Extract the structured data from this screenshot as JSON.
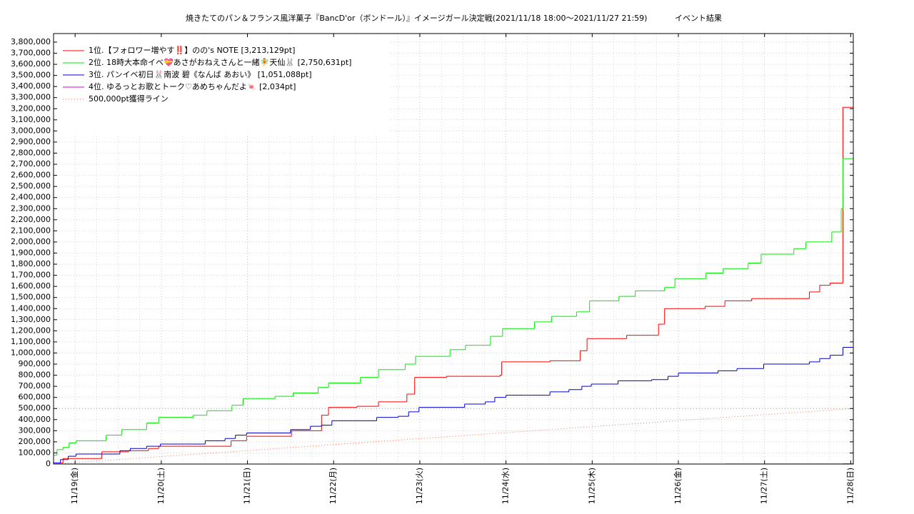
{
  "chart_data": {
    "type": "line",
    "step": true,
    "title": "焼きたてのパン＆フランス風洋菓子『BancD'or（ボンドール）』イメージガール決定戦(2021/11/18 18:00～2021/11/27 21:59)",
    "subtitle": "イベント結果",
    "grid": true,
    "legend": "upper-left",
    "xlim": [
      18.75,
      28.03
    ],
    "xticks": [
      {
        "value": 19,
        "label": "11/19(金)"
      },
      {
        "value": 20,
        "label": "11/20(土)"
      },
      {
        "value": 21,
        "label": "11/21(日)"
      },
      {
        "value": 22,
        "label": "11/22(月)"
      },
      {
        "value": 23,
        "label": "11/23(火)"
      },
      {
        "value": 24,
        "label": "11/24(水)"
      },
      {
        "value": 25,
        "label": "11/25(木)"
      },
      {
        "value": 26,
        "label": "11/26(金)"
      },
      {
        "value": 27,
        "label": "11/27(土)"
      },
      {
        "value": 28,
        "label": "11/28(日)"
      }
    ],
    "ylim": [
      0,
      3877000
    ],
    "yticks": [
      0,
      {
        "value": 100000,
        "label": "100,000"
      },
      {
        "value": 200000,
        "label": "200,000"
      },
      {
        "value": 300000,
        "label": "300,000"
      },
      {
        "value": 400000,
        "label": "400,000"
      },
      {
        "value": 500000,
        "label": "500,000"
      },
      {
        "value": 600000,
        "label": "600,000"
      },
      {
        "value": 700000,
        "label": "700,000"
      },
      {
        "value": 800000,
        "label": "800,000"
      },
      {
        "value": 900000,
        "label": "900,000"
      },
      {
        "value": 1000000,
        "label": "1,000,000"
      },
      {
        "value": 1100000,
        "label": "1,100,000"
      },
      {
        "value": 1200000,
        "label": "1,200,000"
      },
      {
        "value": 1300000,
        "label": "1,300,000"
      },
      {
        "value": 1400000,
        "label": "1,400,000"
      },
      {
        "value": 1500000,
        "label": "1,500,000"
      },
      {
        "value": 1600000,
        "label": "1,600,000"
      },
      {
        "value": 1700000,
        "label": "1,700,000"
      },
      {
        "value": 1800000,
        "label": "1,800,000"
      },
      {
        "value": 1900000,
        "label": "1,900,000"
      },
      {
        "value": 2000000,
        "label": "2,000,000"
      },
      {
        "value": 2100000,
        "label": "2,100,000"
      },
      {
        "value": 2200000,
        "label": "2,200,000"
      },
      {
        "value": 2300000,
        "label": "2,300,000"
      },
      {
        "value": 2400000,
        "label": "2,400,000"
      },
      {
        "value": 2500000,
        "label": "2,500,000"
      },
      {
        "value": 2600000,
        "label": "2,600,000"
      },
      {
        "value": 2700000,
        "label": "2,700,000"
      },
      {
        "value": 2800000,
        "label": "2,800,000"
      },
      {
        "value": 2900000,
        "label": "2,900,000"
      },
      {
        "value": 3000000,
        "label": "3,000,000"
      },
      {
        "value": 3100000,
        "label": "3,100,000"
      },
      {
        "value": 3200000,
        "label": "3,200,000"
      },
      {
        "value": 3300000,
        "label": "3,300,000"
      },
      {
        "value": 3400000,
        "label": "3,400,000"
      },
      {
        "value": 3500000,
        "label": "3,500,000"
      },
      {
        "value": 3600000,
        "label": "3,600,000"
      },
      {
        "value": 3700000,
        "label": "3,700,000"
      },
      {
        "value": 3800000,
        "label": "3,800,000"
      }
    ],
    "series": [
      {
        "name": "1位.【フォロワー増やす‼️】のの's NOTE [3,213,129pt]",
        "color": "#ff0000",
        "x": [
          18.75,
          18.86,
          19.31,
          19.62,
          19.85,
          19.97,
          20.81,
          20.99,
          21.51,
          21.86,
          21.94,
          22.27,
          22.52,
          22.85,
          22.94,
          23.31,
          23.93,
          23.95,
          24.51,
          24.86,
          24.94,
          25.4,
          25.77,
          25.84,
          26.31,
          26.54,
          26.85,
          27.52,
          27.64,
          27.76,
          27.91
        ],
        "values": [
          10000,
          50000,
          110000,
          120000,
          140000,
          160000,
          210000,
          250000,
          300000,
          440000,
          510000,
          520000,
          560000,
          630000,
          780000,
          790000,
          800000,
          920000,
          930000,
          1020000,
          1130000,
          1160000,
          1260000,
          1400000,
          1420000,
          1470000,
          1490000,
          1550000,
          1610000,
          1630000,
          3213129
        ]
      },
      {
        "name": "2位. 18時大本命イベ💝あさがおねえさんと一緒🧚天仙🐰 [2,750,631pt]",
        "color": "#00ee00",
        "x": [
          18.75,
          18.79,
          18.86,
          18.93,
          19.01,
          19.36,
          19.54,
          19.83,
          19.97,
          20.37,
          20.53,
          20.82,
          20.95,
          21.32,
          21.53,
          21.82,
          21.94,
          22.31,
          22.52,
          22.83,
          22.95,
          23.35,
          23.53,
          23.82,
          23.96,
          24.33,
          24.53,
          24.82,
          24.97,
          25.31,
          25.5,
          25.84,
          25.96,
          26.32,
          26.52,
          26.81,
          26.96,
          27.34,
          27.48,
          27.78,
          27.89,
          27.91
        ],
        "values": [
          80000,
          130000,
          150000,
          190000,
          210000,
          260000,
          310000,
          370000,
          420000,
          440000,
          480000,
          530000,
          590000,
          610000,
          640000,
          690000,
          730000,
          780000,
          850000,
          900000,
          970000,
          1030000,
          1070000,
          1150000,
          1220000,
          1280000,
          1330000,
          1370000,
          1470000,
          1510000,
          1560000,
          1590000,
          1670000,
          1720000,
          1760000,
          1810000,
          1890000,
          1940000,
          2000000,
          2090000,
          2300000,
          2750631
        ]
      },
      {
        "name": "3位. パンイベ初日🐰南波 碧《なんば あおい》 [1,051,088pt]",
        "color": "#0000cc",
        "x": [
          18.75,
          18.83,
          18.92,
          19.01,
          19.52,
          19.64,
          19.83,
          19.99,
          20.51,
          20.74,
          20.86,
          20.99,
          21.5,
          21.73,
          21.86,
          21.98,
          22.5,
          22.75,
          22.87,
          22.99,
          23.52,
          23.76,
          23.87,
          24.0,
          24.51,
          24.73,
          24.88,
          24.99,
          25.3,
          25.69,
          25.88,
          26.0,
          26.46,
          26.68,
          26.99,
          27.52,
          27.64,
          27.76,
          27.91
        ],
        "values": [
          10000,
          40000,
          70000,
          90000,
          120000,
          140000,
          160000,
          180000,
          210000,
          230000,
          260000,
          280000,
          310000,
          340000,
          350000,
          390000,
          420000,
          430000,
          470000,
          510000,
          540000,
          560000,
          600000,
          620000,
          650000,
          670000,
          700000,
          720000,
          750000,
          760000,
          790000,
          820000,
          840000,
          860000,
          900000,
          920000,
          950000,
          980000,
          1051088
        ]
      },
      {
        "name": "4位. ゆるっとお歌とトーク♡あめちゃんだよ🍬 [2,034pt]",
        "color": "#dd00dd",
        "x": [
          26.54,
          27.91
        ],
        "values": [
          1000,
          2034
        ]
      },
      {
        "name": "500,000pt獲得ライン",
        "color": "#ff7050",
        "style": "dotted",
        "x": [
          18.75,
          28.03
        ],
        "values": [
          0,
          500000
        ]
      }
    ]
  }
}
